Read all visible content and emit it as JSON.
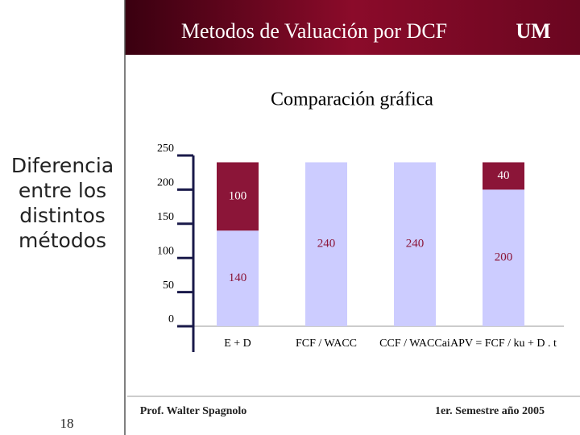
{
  "header": {
    "title": "Metodos de Valuación por DCF",
    "logo": "UM"
  },
  "side_text": "Diferencia entre los distintos métodos",
  "chart_data": {
    "type": "stacked_bar",
    "title": "Comparación gráfica",
    "categories": [
      "E + D",
      "FCF / WACC",
      "CCF / WACCai",
      "APV = FCF / ku + D . t"
    ],
    "series": [
      {
        "color": "#ccccff",
        "values": [
          140,
          240,
          240,
          200
        ]
      },
      {
        "color": "#8b1538",
        "values": [
          100,
          null,
          null,
          40
        ]
      }
    ],
    "ylim": [
      0,
      250
    ],
    "yticks": [
      0,
      50,
      100,
      150,
      200,
      250
    ]
  },
  "footer": {
    "author": "Prof. Walter Spagnolo",
    "page": "18",
    "date": "1er. Semestre año 2005"
  }
}
